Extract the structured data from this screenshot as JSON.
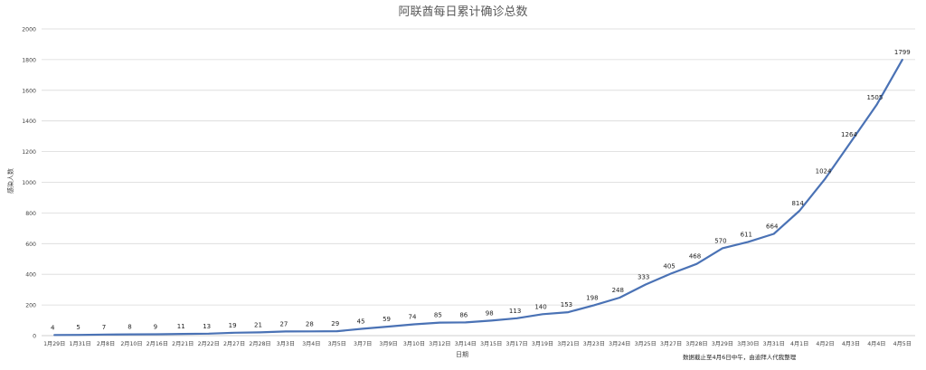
{
  "chart_data": {
    "type": "line",
    "title": "阿联酋每日累计确诊总数",
    "xlabel": "日期",
    "ylabel": "感染人数",
    "ylim": [
      0,
      2000
    ],
    "yticks": [
      0,
      200,
      400,
      600,
      800,
      1000,
      1200,
      1400,
      1600,
      1800,
      2000
    ],
    "grid": true,
    "categories": [
      "1月29日",
      "1月31日",
      "2月8日",
      "2月10日",
      "2月16日",
      "2月21日",
      "2月22日",
      "2月27日",
      "2月28日",
      "3月3日",
      "3月4日",
      "3月5日",
      "3月7日",
      "3月9日",
      "3月10日",
      "3月12日",
      "3月14日",
      "3月15日",
      "3月17日",
      "3月19日",
      "3月21日",
      "3月23日",
      "3月24日",
      "3月25日",
      "3月27日",
      "3月28日",
      "3月29日",
      "3月30日",
      "3月31日",
      "4月1日",
      "4月2日",
      "4月3日",
      "4月4日",
      "4月5日"
    ],
    "series": [
      {
        "values": [
          4,
          5,
          7,
          8,
          9,
          11,
          13,
          19,
          21,
          27,
          28,
          29,
          45,
          59,
          74,
          85,
          86,
          98,
          113,
          140,
          153,
          198,
          248,
          333,
          405,
          468,
          570,
          611,
          664,
          814,
          1024,
          1264,
          1505,
          1799
        ],
        "color": "#4a72b5"
      }
    ],
    "annotation": "数据截止至4月6日中午，由迪拜人代我整理"
  }
}
